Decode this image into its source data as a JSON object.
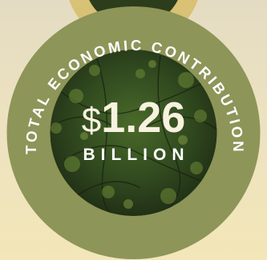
{
  "badge": {
    "ring_label": "TOTAL ECONOMIC CONTRIBUTION",
    "currency_symbol": "$",
    "amount": "1.26",
    "unit": "BILLION"
  },
  "colors": {
    "ring": "#8d9558",
    "top_disc": "#d9c175",
    "forest_dark": "#24331a",
    "forest_mid": "#3e5a26",
    "text": "#ffffff"
  }
}
